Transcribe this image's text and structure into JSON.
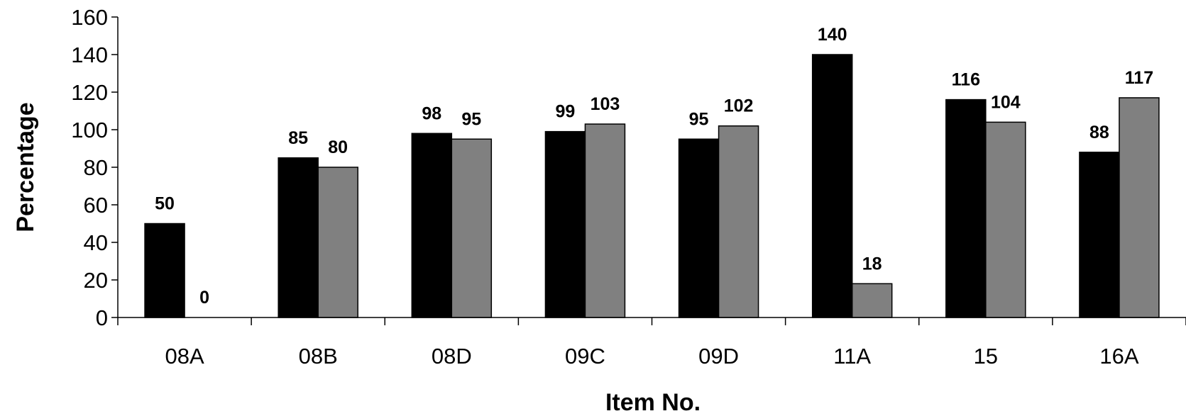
{
  "chart_data": {
    "type": "bar",
    "categories": [
      "08A",
      "08B",
      "08D",
      "09C",
      "09D",
      "11A",
      "15",
      "16A"
    ],
    "series": [
      {
        "values": [
          50,
          85,
          98,
          99,
          95,
          140,
          116,
          88
        ],
        "color": "#000000"
      },
      {
        "values": [
          0,
          80,
          95,
          103,
          102,
          18,
          104,
          117
        ],
        "color": "#808080"
      }
    ],
    "xlabel": "Item No.",
    "ylabel": "Percentage",
    "ylim": [
      0,
      160
    ],
    "yticks": [
      0,
      20,
      40,
      60,
      80,
      100,
      120,
      140,
      160
    ],
    "grid": false,
    "legend": "none"
  }
}
